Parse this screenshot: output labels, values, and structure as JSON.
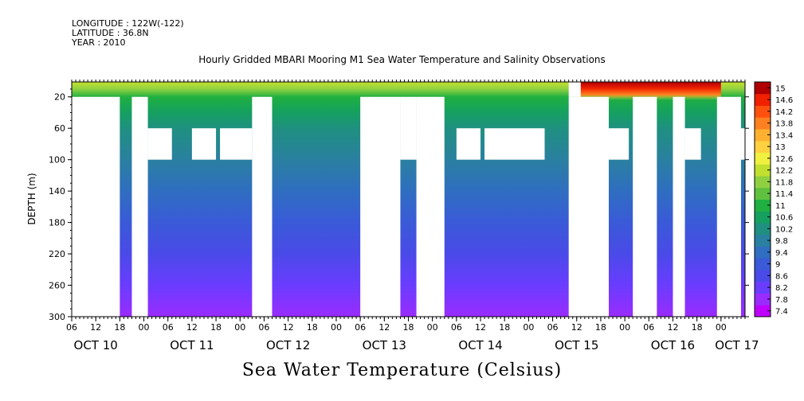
{
  "header": {
    "longitude": "LONGITUDE : 122W(-122)",
    "latitude": "LATITUDE : 36.8N",
    "year": "YEAR : 2010"
  },
  "chart_data": {
    "type": "heatmap",
    "title": "Hourly Gridded MBARI Mooring M1 Sea Water Temperature and Salinity Observations",
    "bottom_title": "Sea Water Temperature (Celsius)",
    "ylabel": "DEPTH (m)",
    "xlabel": "",
    "ylim": [
      300,
      1
    ],
    "y_ticks": [
      20,
      60,
      100,
      140,
      180,
      220,
      260,
      300
    ],
    "x_range_hours": [
      "OCT 10 06:00",
      "OCT 17 06:00"
    ],
    "x_hour_labels": [
      "06",
      "12",
      "18",
      "00",
      "06",
      "12",
      "18",
      "00",
      "06",
      "12",
      "18",
      "00",
      "06",
      "12",
      "18",
      "00",
      "06",
      "12",
      "18",
      "00",
      "06",
      "12",
      "18",
      "00",
      "06",
      "12",
      "18",
      "00"
    ],
    "x_day_labels": [
      "OCT 10",
      "OCT 11",
      "OCT 12",
      "OCT 13",
      "OCT 14",
      "OCT 15",
      "OCT 16",
      "OCT 17"
    ],
    "colorbar": {
      "levels": [
        7.4,
        7.8,
        8.2,
        8.6,
        9,
        9.4,
        9.8,
        10.2,
        10.6,
        11,
        11.4,
        11.8,
        12.2,
        12.6,
        13,
        13.4,
        13.8,
        14.2,
        14.6,
        15
      ],
      "labels": [
        "7.4",
        "7.8",
        "8.2",
        "8.6",
        "9",
        "9.4",
        "9.8",
        "10.2",
        "10.6",
        "11",
        "11.4",
        "11.8",
        "12.2",
        "12.6",
        "13",
        "13.4",
        "13.8",
        "14.2",
        "14.6",
        "15"
      ],
      "colors": [
        "#c000ff",
        "#9a2cff",
        "#6a3cff",
        "#4a4ae8",
        "#3a5ad8",
        "#2f6ec0",
        "#2a80a0",
        "#1f9080",
        "#15a060",
        "#20b040",
        "#60c040",
        "#90d040",
        "#c0e030",
        "#f0f040",
        "#ffd040",
        "#ffb030",
        "#ff8020",
        "#ff5010",
        "#f02000",
        "#b00000"
      ]
    },
    "profile": {
      "depths": [
        2,
        10,
        20,
        40,
        60,
        100,
        140,
        180,
        220,
        260,
        300
      ],
      "temperature_c": [
        12.2,
        11.8,
        11.0,
        10.6,
        10.3,
        9.9,
        9.4,
        9.0,
        8.6,
        8.2,
        7.8
      ]
    },
    "warm_surface_period": [
      "OCT 15 12:00",
      "OCT 17 00:00"
    ],
    "warm_surface_temperature_c": 15,
    "no_data_periods": [
      {
        "start": "OCT 10 06:00",
        "end": "OCT 10 18:00",
        "depth_from": 20,
        "depth_to": 300
      },
      {
        "start": "OCT 10 21:00",
        "end": "OCT 11 01:00",
        "depth_from": 20,
        "depth_to": 300
      },
      {
        "start": "OCT 11 01:00",
        "end": "OCT 11 07:00",
        "depth_from": 60,
        "depth_to": 100
      },
      {
        "start": "OCT 11 12:00",
        "end": "OCT 11 18:00",
        "depth_from": 60,
        "depth_to": 100
      },
      {
        "start": "OCT 11 19:00",
        "end": "OCT 12 03:00",
        "depth_from": 60,
        "depth_to": 100
      },
      {
        "start": "OCT 12 03:00",
        "end": "OCT 12 08:00",
        "depth_from": 20,
        "depth_to": 300
      },
      {
        "start": "OCT 13 06:00",
        "end": "OCT 13 16:00",
        "depth_from": 20,
        "depth_to": 300
      },
      {
        "start": "OCT 13 16:00",
        "end": "OCT 13 20:00",
        "depth_from": 20,
        "depth_to": 100
      },
      {
        "start": "OCT 13 20:00",
        "end": "OCT 14 03:00",
        "depth_from": 20,
        "depth_to": 300
      },
      {
        "start": "OCT 14 06:00",
        "end": "OCT 14 12:00",
        "depth_from": 60,
        "depth_to": 100
      },
      {
        "start": "OCT 14 13:00",
        "end": "OCT 15 04:00",
        "depth_from": 60,
        "depth_to": 100
      },
      {
        "start": "OCT 15 10:00",
        "end": "OCT 15 13:00",
        "depth_from": 1,
        "depth_to": 20
      },
      {
        "start": "OCT 15 10:00",
        "end": "OCT 15 20:00",
        "depth_from": 20,
        "depth_to": 300
      },
      {
        "start": "OCT 15 20:00",
        "end": "OCT 16 01:00",
        "depth_from": 60,
        "depth_to": 100
      },
      {
        "start": "OCT 16 02:00",
        "end": "OCT 16 08:00",
        "depth_from": 20,
        "depth_to": 300
      },
      {
        "start": "OCT 16 12:00",
        "end": "OCT 16 15:00",
        "depth_from": 20,
        "depth_to": 300
      },
      {
        "start": "OCT 16 15:00",
        "end": "OCT 16 19:00",
        "depth_from": 60,
        "depth_to": 100
      },
      {
        "start": "OCT 16 23:00",
        "end": "OCT 17 05:00",
        "depth_from": 20,
        "depth_to": 300
      },
      {
        "start": "OCT 17 05:00",
        "end": "OCT 17 07:00",
        "depth_from": 60,
        "depth_to": 100
      }
    ]
  }
}
